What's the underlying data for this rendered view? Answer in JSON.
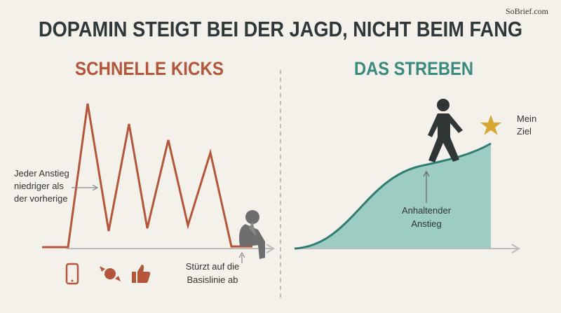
{
  "watermark": "SoBrief.com",
  "title": "DOPAMIN STEIGT BEI DER JAGD, NICHT BEIM FANG",
  "left": {
    "heading": "SCHNELLE KICKS",
    "annotation": [
      "Jeder Anstieg",
      "niedriger als",
      "der vorherige"
    ],
    "crash_label": [
      "Stürzt auf die",
      "Basislinie ab"
    ]
  },
  "right": {
    "heading": "DAS STREBEN",
    "rise_label": [
      "Anhaltender",
      "Anstieg"
    ],
    "goal_label": [
      "Mein",
      "Ziel"
    ]
  }
}
